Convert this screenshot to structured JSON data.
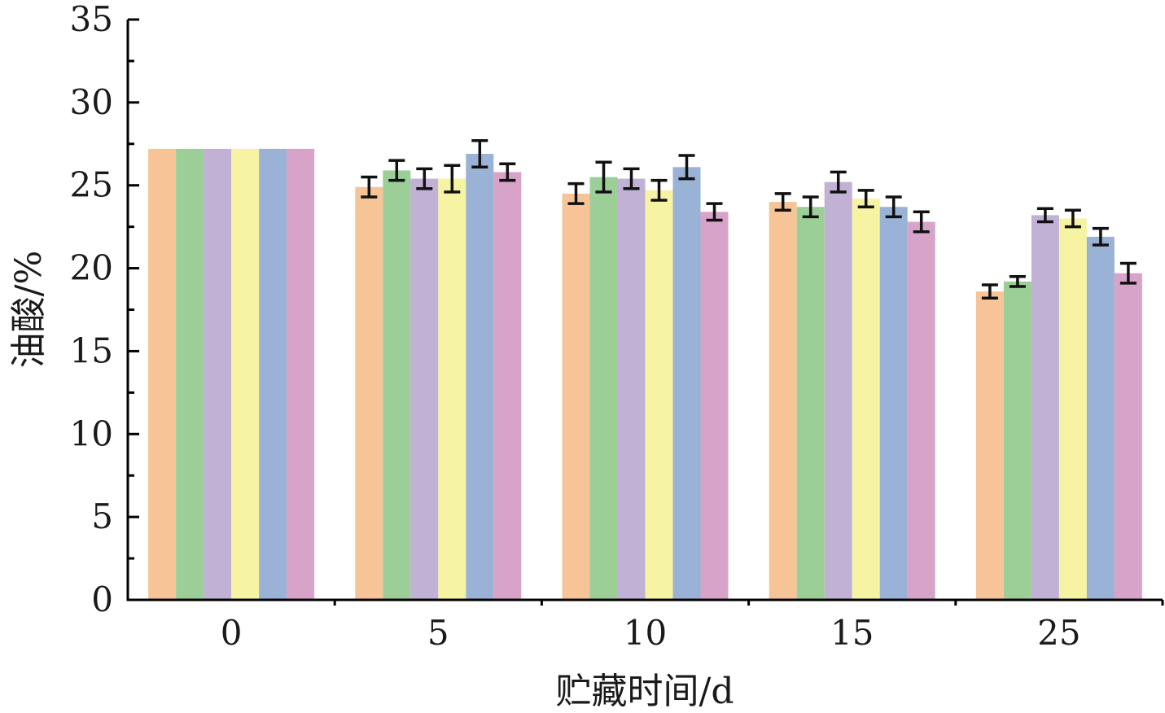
{
  "chart_data": {
    "type": "bar",
    "title": "",
    "xlabel": "贮藏时间/d",
    "ylabel": "油酸/%",
    "categories": [
      "0",
      "5",
      "10",
      "15",
      "25"
    ],
    "ylim": [
      0,
      35
    ],
    "yticks": [
      0,
      5,
      10,
      15,
      20,
      25,
      30,
      35
    ],
    "grid": false,
    "legend": "none",
    "series": [
      {
        "color": "#F6C497",
        "values": [
          27.2,
          24.9,
          24.5,
          24.0,
          18.6
        ],
        "errors": [
          0,
          0.6,
          0.6,
          0.5,
          0.4
        ]
      },
      {
        "color": "#9CCF98",
        "values": [
          27.2,
          25.9,
          25.5,
          23.7,
          19.2
        ],
        "errors": [
          0,
          0.6,
          0.9,
          0.6,
          0.3
        ]
      },
      {
        "color": "#C1B1D5",
        "values": [
          27.2,
          25.4,
          25.4,
          25.2,
          23.2
        ],
        "errors": [
          0,
          0.6,
          0.6,
          0.6,
          0.4
        ]
      },
      {
        "color": "#F6F3A3",
        "values": [
          27.2,
          25.4,
          24.7,
          24.2,
          23.0
        ],
        "errors": [
          0,
          0.8,
          0.6,
          0.5,
          0.5
        ]
      },
      {
        "color": "#9AB2D6",
        "values": [
          27.2,
          26.9,
          26.1,
          23.7,
          21.9
        ],
        "errors": [
          0,
          0.8,
          0.7,
          0.6,
          0.5
        ]
      },
      {
        "color": "#D7A3C8",
        "values": [
          27.2,
          25.8,
          23.4,
          22.8,
          19.7
        ],
        "errors": [
          0,
          0.5,
          0.5,
          0.6,
          0.6
        ]
      }
    ]
  }
}
